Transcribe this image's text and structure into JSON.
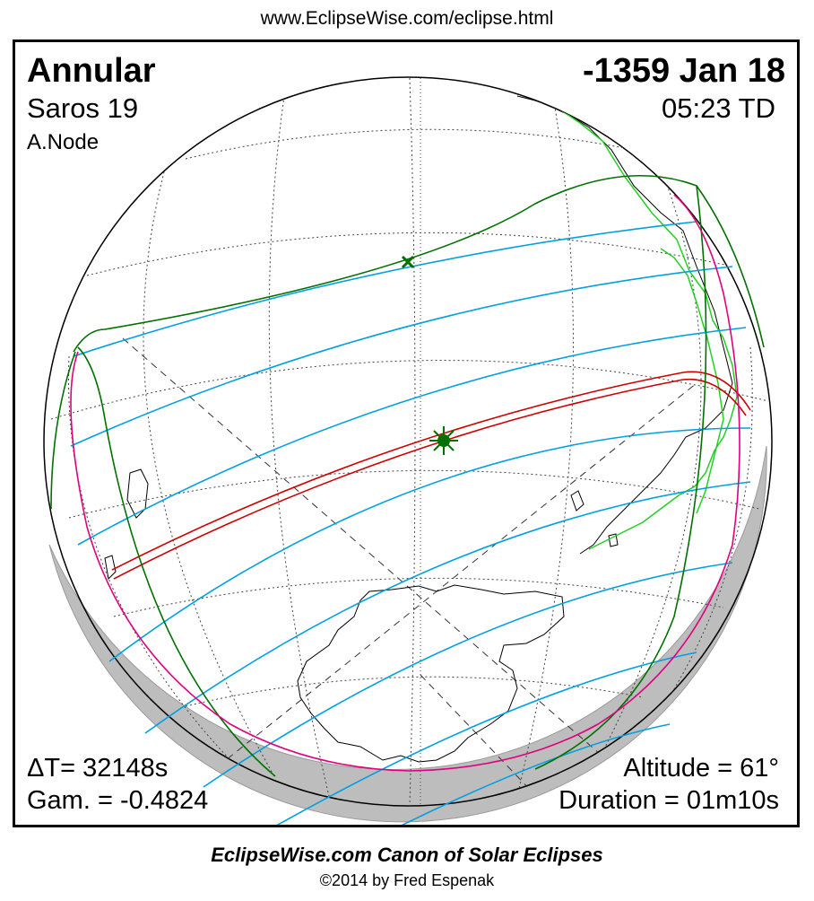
{
  "header": {
    "url": "www.EclipseWise.com/eclipse.html"
  },
  "panel": {
    "eclipse_type": "Annular",
    "date": "-1359 Jan 18",
    "saros": "Saros  19",
    "time": "05:23 TD",
    "node": "A.Node",
    "delta_t": "ΔT=  32148s",
    "gamma": "Gam. = -0.4824",
    "altitude": "Altitude = 61°",
    "duration": "Duration = 01m10s"
  },
  "map": {
    "projection": "orthographic",
    "colors": {
      "central_path": "#cc0000",
      "penumbral_limits": "#007000",
      "partial_contours": "#00a0e0",
      "rise_set_curve": "#e0007f",
      "coastline": "#000000",
      "ancient_coastline": "#22d022",
      "night_shadow": "#bdbdbd",
      "graticule": "#333333"
    },
    "markers": {
      "greatest_eclipse": "star-marker",
      "sub_solar_point": "cross-marker"
    }
  },
  "footer": {
    "title": "EclipseWise.com Canon of Solar Eclipses",
    "copyright": "©2014 by Fred Espenak"
  }
}
